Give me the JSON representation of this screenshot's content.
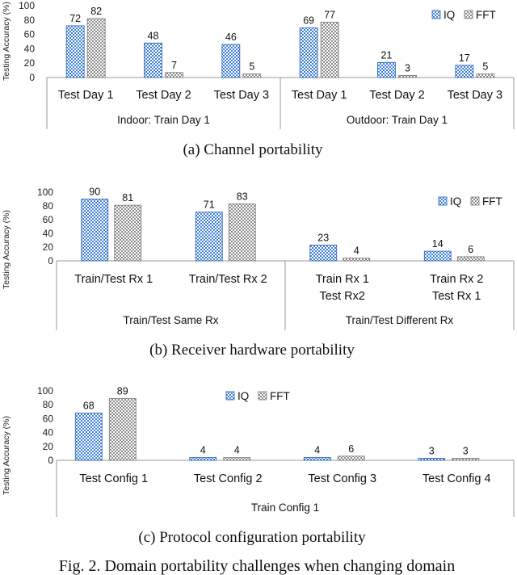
{
  "chart_data": [
    {
      "type": "bar",
      "panel": "a",
      "caption": "(a)  Channel  portability",
      "ylabel": "Testing Accuracy (%)",
      "ylim": [
        0,
        100
      ],
      "yticks": [
        "0",
        "20",
        "40",
        "60",
        "80",
        "100"
      ],
      "categories": [
        [
          "Test Day 1"
        ],
        [
          "Test Day 2"
        ],
        [
          "Test Day 3"
        ],
        [
          "Test Day 1"
        ],
        [
          "Test Day 2"
        ],
        [
          "Test Day 3"
        ]
      ],
      "groups": [
        {
          "label": "Indoor: Train Day 1",
          "count": 3
        },
        {
          "label": "Outdoor: Train Day 1",
          "count": 3
        }
      ],
      "series": [
        {
          "name": "IQ",
          "values": [
            72,
            48,
            46,
            69,
            21,
            17
          ]
        },
        {
          "name": "FFT",
          "values": [
            82,
            7,
            5,
            77,
            3,
            5
          ]
        }
      ],
      "legend": "top-right"
    },
    {
      "type": "bar",
      "panel": "b",
      "caption": "(b)  Receiver  hardware  portability",
      "ylabel": "Testing Accuracy (%)",
      "ylim": [
        0,
        100
      ],
      "yticks": [
        "0",
        "20",
        "40",
        "60",
        "80",
        "100"
      ],
      "categories": [
        [
          "Train/Test Rx 1"
        ],
        [
          "Train/Test Rx 2"
        ],
        [
          "Train Rx 1",
          "Test Rx2"
        ],
        [
          "Train Rx 2",
          "Test Rx 1"
        ]
      ],
      "groups": [
        {
          "label": "Train/Test Same Rx",
          "count": 2
        },
        {
          "label": "Train/Test Different Rx",
          "count": 2
        }
      ],
      "series": [
        {
          "name": "IQ",
          "values": [
            90,
            71,
            23,
            14
          ]
        },
        {
          "name": "FFT",
          "values": [
            81,
            83,
            4,
            6
          ]
        }
      ],
      "legend": "top-right"
    },
    {
      "type": "bar",
      "panel": "c",
      "caption": "(c)  Protocol  configuration  portability",
      "ylabel": "Testing Accuracy (%)",
      "ylim": [
        0,
        100
      ],
      "yticks": [
        "0",
        "20",
        "40",
        "60",
        "80",
        "100"
      ],
      "categories": [
        [
          "Test Config 1"
        ],
        [
          "Test Config 2"
        ],
        [
          "Test Config 3"
        ],
        [
          "Test Config 4"
        ]
      ],
      "groups": [
        {
          "label": "Train Config 1",
          "count": 4
        }
      ],
      "series": [
        {
          "name": "IQ",
          "values": [
            68,
            4,
            4,
            3
          ]
        },
        {
          "name": "FFT",
          "values": [
            89,
            4,
            6,
            3
          ]
        }
      ],
      "legend": "top-center"
    }
  ],
  "figure_caption": "Fig.  2.  Domain  portability  challenges  when  changing  domain",
  "colors": {
    "iq_fill": "#3f7fd6",
    "iq_stroke": "#2a62b5",
    "fft_fill": "#8c8c8c",
    "fft_stroke": "#7a7a7a",
    "axis": "#9a9a9a"
  }
}
